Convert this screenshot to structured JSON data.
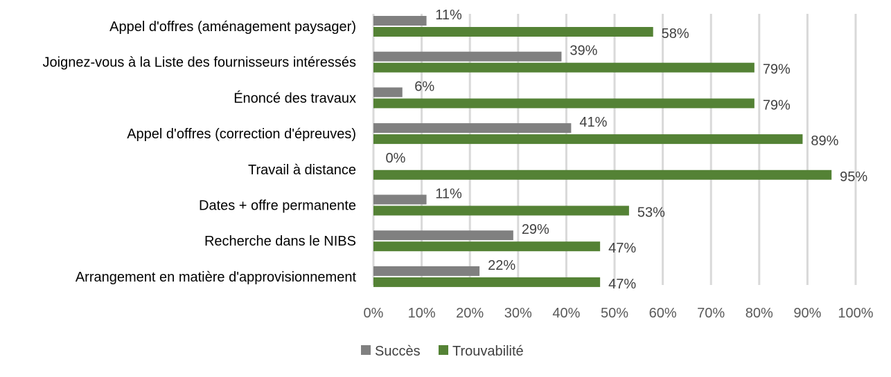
{
  "chart_data": {
    "type": "bar",
    "orientation": "horizontal",
    "categories": [
      "Appel d'offres (aménagement paysager)",
      "Joignez-vous à la Liste des fournisseurs intéressés",
      "Énoncé des travaux",
      "Appel d'offres (correction d'épreuves)",
      "Travail à distance",
      "Dates + offre permanente",
      "Recherche dans le NIBS",
      "Arrangement en matière d'approvisionnement"
    ],
    "series": [
      {
        "name": "Succès",
        "color": "#808080",
        "values": [
          11,
          39,
          6,
          41,
          0,
          11,
          29,
          22
        ],
        "labels": [
          "11%",
          "39%",
          "6%",
          "41%",
          "0%",
          "11%",
          "29%",
          "22%"
        ]
      },
      {
        "name": "Trouvabilité",
        "color": "#548235",
        "values": [
          58,
          79,
          79,
          89,
          95,
          53,
          47,
          47
        ],
        "labels": [
          "58%",
          "79%",
          "79%",
          "89%",
          "95%",
          "53%",
          "47%",
          "47%"
        ]
      }
    ],
    "xlim": [
      0,
      100
    ],
    "x_ticks": [
      "0%",
      "10%",
      "20%",
      "30%",
      "40%",
      "50%",
      "60%",
      "70%",
      "80%",
      "90%",
      "100%"
    ],
    "grid": true,
    "legend_position": "bottom",
    "title": "",
    "xlabel": "",
    "ylabel": ""
  }
}
